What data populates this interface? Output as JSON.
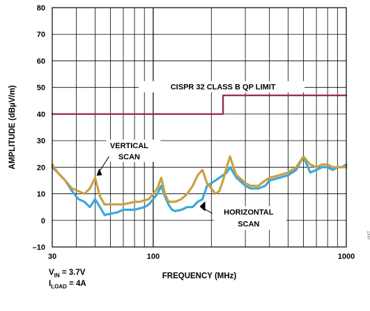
{
  "chart_data": {
    "type": "line",
    "xscale": "log",
    "xlim": [
      30,
      1000
    ],
    "ylim": [
      -10,
      80
    ],
    "xlabel": "FREQUENCY (MHz)",
    "ylabel": "AMPLITUDE (dBµV/m)",
    "xticklabels": [
      "30",
      "100",
      "1000"
    ],
    "yticks": [
      -10,
      0,
      10,
      20,
      30,
      40,
      50,
      60,
      70,
      80
    ],
    "yticklabels": [
      "–10",
      "0",
      "10",
      "20",
      "30",
      "40",
      "50",
      "60",
      "70",
      "80"
    ],
    "grid": true,
    "colors": {
      "limit": "#9b2a55",
      "vertical": "#c9a040",
      "horizontal": "#3aa8d8"
    },
    "series": [
      {
        "id": "limit",
        "name": "CISPR 32 CLASS B QP LIMIT",
        "x": [
          30,
          230,
          230,
          1000
        ],
        "y": [
          40,
          40,
          47,
          47
        ]
      },
      {
        "id": "horizontal",
        "name": "HORIZONTAL SCAN",
        "x": [
          30,
          32,
          35,
          38,
          41,
          44,
          47,
          50,
          53,
          56,
          60,
          65,
          70,
          75,
          80,
          85,
          90,
          95,
          100,
          105,
          110,
          115,
          120,
          125,
          130,
          140,
          150,
          160,
          170,
          180,
          190,
          200,
          210,
          220,
          230,
          240,
          250,
          260,
          270,
          280,
          290,
          300,
          320,
          350,
          380,
          400,
          450,
          500,
          550,
          600,
          650,
          700,
          750,
          800,
          850,
          900,
          950,
          1000
        ],
        "y": [
          20,
          18,
          15,
          11,
          8,
          7,
          5,
          8,
          5,
          2,
          2.5,
          3,
          4,
          4,
          4,
          4.5,
          5,
          6,
          8,
          10,
          13,
          9,
          6,
          4,
          3.5,
          4,
          5,
          5,
          7,
          8,
          13,
          14,
          15,
          16,
          17,
          18,
          20,
          18,
          16,
          15,
          14,
          13,
          12,
          12,
          13,
          15,
          16,
          17,
          19,
          24,
          18,
          19,
          20,
          20,
          19,
          20,
          20,
          21
        ]
      },
      {
        "id": "vertical",
        "name": "VERTICAL SCAN",
        "x": [
          30,
          32,
          35,
          38,
          41,
          44,
          47,
          50,
          53,
          56,
          60,
          65,
          70,
          75,
          80,
          85,
          90,
          95,
          100,
          105,
          110,
          115,
          120,
          125,
          130,
          140,
          150,
          160,
          170,
          180,
          190,
          200,
          210,
          220,
          230,
          240,
          250,
          260,
          270,
          280,
          290,
          300,
          320,
          350,
          380,
          400,
          450,
          500,
          550,
          600,
          650,
          700,
          750,
          800,
          850,
          900,
          950,
          1000
        ],
        "y": [
          21,
          18,
          15,
          12,
          11,
          10,
          12,
          16,
          9,
          6,
          6,
          6,
          6,
          6.5,
          7,
          7,
          7.5,
          8,
          10,
          12,
          16,
          10,
          7,
          7,
          7,
          8,
          10,
          13,
          17,
          19,
          14,
          12,
          10,
          11,
          15,
          20,
          24,
          20,
          17,
          16,
          15,
          14,
          13,
          13,
          15,
          16,
          17,
          18,
          20,
          24,
          21,
          20,
          21,
          21,
          20,
          20,
          20,
          20
        ]
      }
    ],
    "annotations": {
      "limit": "CISPR 32 CLASS B QP LIMIT",
      "vertical": [
        "VERTICAL",
        "SCAN"
      ],
      "horizontal": [
        "HORIZONTAL",
        "SCAN"
      ]
    }
  },
  "notes": {
    "vin_label": "V",
    "vin_sub": "IN",
    "vin_value": " = 3.7V",
    "iload_label": "I",
    "iload_sub": "LOAD",
    "iload_value": " = 4A"
  },
  "figure_code": "037"
}
